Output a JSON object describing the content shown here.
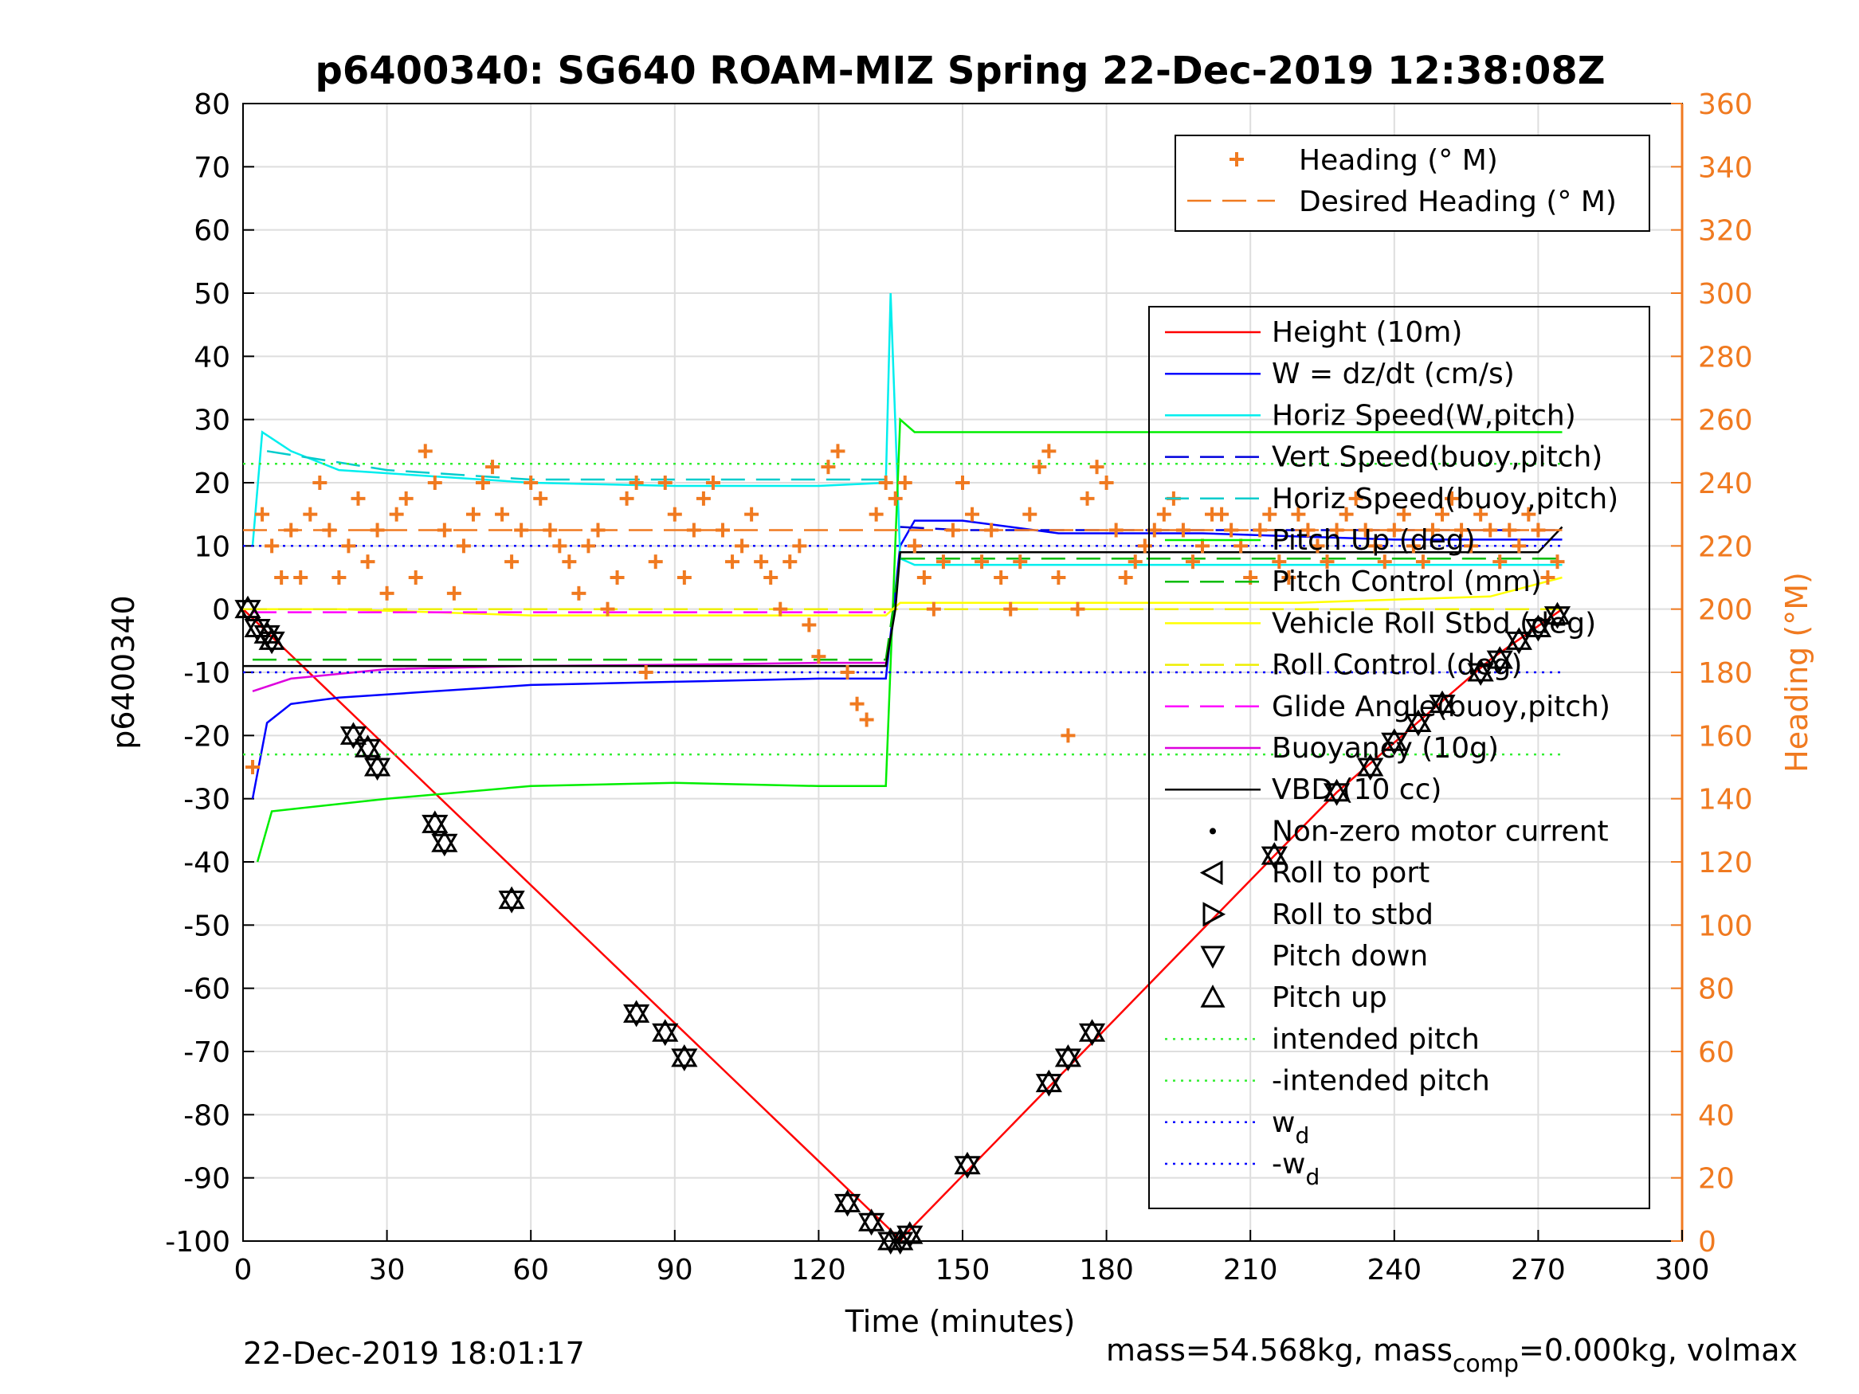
{
  "chart_data": {
    "type": "line",
    "title": "p6400340: SG640 ROAM-MIZ Spring 22-Dec-2019 12:38:08Z",
    "xlabel": "Time (minutes)",
    "ylabel": "p6400340",
    "ylabel_right": "Heading (°M)",
    "xlim": [
      0,
      300
    ],
    "ylim": [
      -100,
      80
    ],
    "ylim_right": [
      0,
      360
    ],
    "x_ticks": [
      "0",
      "30",
      "60",
      "90",
      "120",
      "150",
      "180",
      "210",
      "240",
      "270",
      "300"
    ],
    "y_ticks": [
      "80",
      "70",
      "60",
      "50",
      "40",
      "30",
      "20",
      "10",
      "0",
      "-10",
      "-20",
      "-30",
      "-40",
      "-50",
      "-60",
      "-70",
      "-80",
      "-90",
      "-100"
    ],
    "y_ticks_right": [
      "360",
      "340",
      "320",
      "300",
      "280",
      "260",
      "240",
      "220",
      "200",
      "180",
      "160",
      "140",
      "120",
      "100",
      "80",
      "60",
      "40",
      "20",
      "0"
    ],
    "grid": true,
    "legend_top": [
      {
        "label": "Heading (° M)"
      },
      {
        "label": "Desired Heading (° M)"
      }
    ],
    "legend_main": [
      {
        "label": "Height (10m)"
      },
      {
        "label": "W = dz/dt (cm/s)"
      },
      {
        "label": "Horiz Speed(W,pitch)"
      },
      {
        "label": "Vert Speed(buoy,pitch)"
      },
      {
        "label": "Horiz Speed(buoy,pitch)"
      },
      {
        "label": "Pitch Up (deg)"
      },
      {
        "label": "Pitch Control (mm)"
      },
      {
        "label": "Vehicle Roll Stbd (deg)"
      },
      {
        "label": "Roll Control (deg)"
      },
      {
        "label": "Glide Angle(buoy,pitch)"
      },
      {
        "label": "Buoyancy (10g)"
      },
      {
        "label": "VBD (10 cc)"
      },
      {
        "label": "Non-zero motor current"
      },
      {
        "label": "Roll to port"
      },
      {
        "label": "Roll to stbd"
      },
      {
        "label": "Pitch down"
      },
      {
        "label": "Pitch up"
      },
      {
        "label": "intended pitch"
      },
      {
        "label": "-intended pitch"
      },
      {
        "label": "w",
        "sub": "d"
      },
      {
        "label": "-w",
        "sub": "d"
      }
    ],
    "series": [
      {
        "name": "Height (10m)",
        "color": "#ff0000",
        "x": [
          0,
          136,
          137,
          138,
          215,
          228,
          260,
          275
        ],
        "y": [
          0,
          -99,
          -100,
          -99,
          -39,
          -29,
          -8,
          0
        ]
      },
      {
        "name": "W = dz/dt (cm/s)",
        "color": "#0000ff",
        "x": [
          2,
          5,
          10,
          20,
          40,
          60,
          90,
          120,
          134,
          137,
          140,
          150,
          170,
          200,
          240,
          270,
          275
        ],
        "y": [
          -30,
          -18,
          -15,
          -14,
          -13,
          -12,
          -11.5,
          -11,
          -11,
          10,
          14,
          14,
          12,
          12,
          11,
          11,
          11
        ]
      },
      {
        "name": "Horiz Speed(W,pitch)",
        "color": "#00eeee",
        "x": [
          2,
          4,
          10,
          20,
          40,
          60,
          90,
          120,
          134,
          135,
          137,
          140,
          170,
          210,
          240,
          270,
          275
        ],
        "y": [
          10,
          28,
          25,
          22,
          21,
          20,
          19.5,
          19.5,
          20,
          50,
          8,
          7,
          7,
          7,
          7,
          7,
          7
        ]
      },
      {
        "name": "Vert Speed(buoy,pitch)",
        "color": "#0000dd",
        "x": [
          137,
          150,
          200,
          275
        ],
        "y": [
          13,
          12.5,
          12.5,
          12.5
        ]
      },
      {
        "name": "Horiz Speed(buoy,pitch)",
        "color": "#00cccc",
        "x": [
          5,
          30,
          60,
          90,
          120,
          134
        ],
        "y": [
          25,
          22,
          20.5,
          20.5,
          20.5,
          20.5
        ]
      },
      {
        "name": "Pitch Up (deg)",
        "color": "#00ee00",
        "x": [
          3,
          6,
          30,
          60,
          90,
          120,
          134,
          137,
          140,
          170,
          200,
          240,
          275
        ],
        "y": [
          -40,
          -32,
          -30,
          -28,
          -27.5,
          -28,
          -28,
          30,
          28,
          28,
          28,
          28,
          28
        ]
      },
      {
        "name": "Pitch Control (mm)",
        "color": "#00bb00",
        "x": [
          2,
          60,
          134,
          137,
          275
        ],
        "y": [
          -8,
          -8,
          -8,
          8,
          8
        ]
      },
      {
        "name": "Vehicle Roll Stbd (deg)",
        "color": "#ffff00",
        "x": [
          0,
          20,
          60,
          100,
          134,
          137,
          180,
          220,
          260,
          275
        ],
        "y": [
          0,
          0,
          -1,
          -1,
          -1,
          1,
          1,
          1,
          2,
          5
        ]
      },
      {
        "name": "Roll Control (deg)",
        "color": "#eeee00",
        "x": [
          0,
          275
        ],
        "y": [
          0,
          0
        ]
      },
      {
        "name": "Glide Angle(buoy,pitch)",
        "color": "#ff00ff",
        "x": [
          2,
          134
        ],
        "y": [
          -0.5,
          -0.5
        ]
      },
      {
        "name": "Buoyancy (10g)",
        "color": "#dd00dd",
        "x": [
          2,
          10,
          30,
          60,
          90,
          120,
          134
        ],
        "y": [
          -13,
          -11,
          -9.5,
          -9,
          -8.8,
          -8.5,
          -8.5
        ]
      },
      {
        "name": "VBD (10 cc)",
        "color": "#000000",
        "x": [
          0,
          2,
          10,
          60,
          134,
          136,
          137,
          180,
          270,
          275
        ],
        "y": [
          -9,
          -9,
          -9,
          -9,
          -9,
          0,
          9,
          9,
          9,
          13
        ]
      },
      {
        "name": "intended pitch",
        "color": "#33ee33",
        "x": [
          0,
          275
        ],
        "y": [
          23,
          23
        ]
      },
      {
        "name": "-intended pitch",
        "color": "#33ee33",
        "x": [
          0,
          275
        ],
        "y": [
          -23,
          -23
        ]
      },
      {
        "name": "w_d",
        "color": "#0000ff",
        "x": [
          0,
          275
        ],
        "y": [
          10,
          10
        ]
      },
      {
        "name": "-w_d",
        "color": "#0000ff",
        "x": [
          0,
          275
        ],
        "y": [
          -10,
          -10
        ]
      },
      {
        "name": "Desired Heading (° M)",
        "color": "#f07a20",
        "axis": "right",
        "x": [
          0,
          275
        ],
        "y": [
          225,
          225
        ]
      }
    ],
    "heading_points": {
      "axis": "right",
      "color": "#f07a20",
      "x": [
        2,
        4,
        6,
        8,
        10,
        12,
        14,
        16,
        18,
        20,
        22,
        24,
        26,
        28,
        30,
        32,
        34,
        36,
        38,
        40,
        42,
        44,
        46,
        48,
        50,
        52,
        54,
        56,
        58,
        60,
        62,
        64,
        66,
        68,
        70,
        72,
        74,
        76,
        78,
        80,
        82,
        84,
        86,
        88,
        90,
        92,
        94,
        96,
        98,
        100,
        102,
        104,
        106,
        108,
        110,
        112,
        114,
        116,
        118,
        120,
        122,
        124,
        126,
        128,
        130,
        132,
        134,
        136,
        138,
        140,
        142,
        144,
        146,
        148,
        150,
        152,
        154,
        156,
        158,
        160,
        162,
        164,
        166,
        168,
        170,
        172,
        174,
        176,
        178,
        180,
        182,
        184,
        186,
        188,
        190,
        192,
        194,
        196,
        198,
        200,
        202,
        204,
        206,
        208,
        210,
        212,
        214,
        216,
        218,
        220,
        222,
        224,
        226,
        228,
        230,
        232,
        234,
        236,
        238,
        240,
        242,
        244,
        246,
        248,
        250,
        252,
        254,
        256,
        258,
        260,
        262,
        264,
        266,
        268,
        270,
        272,
        274
      ],
      "y": [
        150,
        230,
        220,
        210,
        225,
        210,
        230,
        240,
        225,
        210,
        220,
        235,
        215,
        225,
        205,
        230,
        235,
        210,
        250,
        240,
        225,
        205,
        220,
        230,
        240,
        245,
        230,
        215,
        225,
        240,
        235,
        225,
        220,
        215,
        205,
        220,
        225,
        200,
        210,
        235,
        240,
        180,
        215,
        240,
        230,
        210,
        225,
        235,
        240,
        225,
        215,
        220,
        230,
        215,
        210,
        200,
        215,
        220,
        195,
        185,
        245,
        250,
        180,
        170,
        165,
        230,
        240,
        235,
        240,
        220,
        210,
        200,
        215,
        225,
        240,
        230,
        215,
        225,
        210,
        200,
        215,
        230,
        245,
        250,
        210,
        160,
        200,
        235,
        245,
        240,
        225,
        210,
        215,
        220,
        225,
        230,
        235,
        225,
        215,
        220,
        230,
        230,
        225,
        220,
        210,
        225,
        230,
        215,
        210,
        230,
        225,
        220,
        215,
        225,
        230,
        235,
        225,
        220,
        215,
        225,
        230,
        220,
        215,
        225,
        230,
        235,
        225,
        220,
        230,
        225,
        215,
        225,
        220,
        230,
        225,
        210,
        215
      ]
    },
    "markers": {
      "pitch_up_down": {
        "x": [
          1,
          3,
          5,
          6,
          23,
          26,
          28,
          40,
          42,
          56,
          82,
          88,
          92,
          126,
          131,
          135,
          137,
          139,
          151,
          168,
          172,
          177,
          215,
          228,
          235,
          240,
          245,
          250,
          258,
          262,
          266,
          270,
          274
        ],
        "y": [
          0,
          -3,
          -4,
          -5,
          -20,
          -22,
          -25,
          -34,
          -37,
          -46,
          -64,
          -67,
          -71,
          -94,
          -97,
          -100,
          -100,
          -99,
          -88,
          -75,
          -71,
          -67,
          -39,
          -29,
          -25,
          -21,
          -18,
          -15,
          -10,
          -8,
          -5,
          -3,
          -1
        ]
      }
    },
    "footer_left": "22-Dec-2019 18:01:17",
    "footer_right_parts": {
      "a": "mass=54.568kg, mass",
      "sub": "comp",
      "b": "=0.000kg, volmax"
    }
  }
}
